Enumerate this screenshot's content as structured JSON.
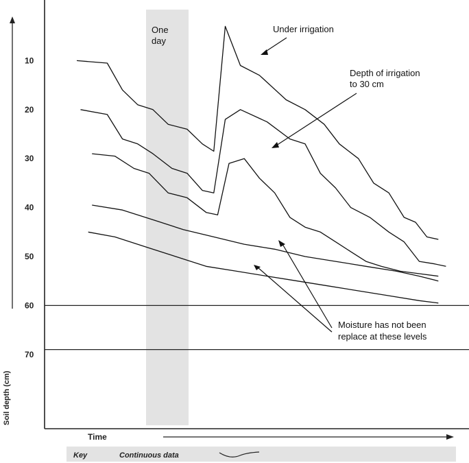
{
  "chart_data": {
    "type": "line",
    "title": "",
    "ylabel": "Soil depth (cm)",
    "xlabel": "Time",
    "y_ticks": [
      "10",
      "20",
      "30",
      "40",
      "50",
      "60",
      "70"
    ],
    "band_label": "One day",
    "x_range": [
      0,
      100
    ],
    "y_range": [
      0,
      80
    ],
    "reference_lines": [
      60,
      69
    ],
    "annotations": {
      "under_irrigation": "Under irrigation",
      "depth_irrigation": [
        "Depth of irrigation",
        "to 30 cm"
      ],
      "moisture": [
        "Moisture has not been",
        "replace at these levels"
      ]
    },
    "key": {
      "key_label": "Key",
      "continuous_label": "Continuous data"
    },
    "series": [
      {
        "values": [
          [
            0,
            10
          ],
          [
            8,
            10.5
          ],
          [
            12,
            16
          ],
          [
            16,
            19
          ],
          [
            20,
            20
          ],
          [
            24,
            23
          ],
          [
            29,
            24
          ],
          [
            33,
            27
          ],
          [
            36,
            28.5
          ],
          [
            39,
            3
          ],
          [
            43,
            11
          ],
          [
            48,
            13
          ],
          [
            55,
            18
          ],
          [
            60,
            20
          ],
          [
            65,
            23
          ],
          [
            69,
            27
          ],
          [
            74,
            30
          ],
          [
            78,
            35
          ],
          [
            82,
            37
          ],
          [
            86,
            42
          ],
          [
            89,
            43
          ],
          [
            92,
            46
          ],
          [
            95,
            46.5
          ]
        ]
      },
      {
        "values": [
          [
            1,
            20
          ],
          [
            8,
            21
          ],
          [
            12,
            26
          ],
          [
            16,
            27
          ],
          [
            20,
            29
          ],
          [
            25,
            32
          ],
          [
            29,
            33
          ],
          [
            33,
            36.5
          ],
          [
            36,
            37
          ],
          [
            39,
            22
          ],
          [
            43,
            20
          ],
          [
            50,
            22.5
          ],
          [
            56,
            26
          ],
          [
            60,
            27
          ],
          [
            64,
            33
          ],
          [
            68,
            36
          ],
          [
            72,
            40
          ],
          [
            77,
            42
          ],
          [
            82,
            45
          ],
          [
            86,
            47
          ],
          [
            90,
            51
          ],
          [
            94,
            51.5
          ],
          [
            97,
            52
          ]
        ]
      },
      {
        "values": [
          [
            4,
            29
          ],
          [
            10,
            29.5
          ],
          [
            15,
            32
          ],
          [
            19,
            33
          ],
          [
            24,
            37
          ],
          [
            29,
            38
          ],
          [
            34,
            41
          ],
          [
            37,
            41.5
          ],
          [
            40,
            31
          ],
          [
            44,
            30
          ],
          [
            48,
            34
          ],
          [
            52,
            37
          ],
          [
            56,
            42
          ],
          [
            60,
            44
          ],
          [
            64,
            45
          ],
          [
            68,
            47
          ],
          [
            72,
            49
          ],
          [
            76,
            51
          ],
          [
            80,
            52
          ],
          [
            85,
            53
          ],
          [
            90,
            53.5
          ],
          [
            95,
            54
          ]
        ]
      },
      {
        "values": [
          [
            4,
            39.5
          ],
          [
            12,
            40.5
          ],
          [
            20,
            42.5
          ],
          [
            28,
            44.5
          ],
          [
            36,
            46
          ],
          [
            44,
            47.5
          ],
          [
            52,
            48.5
          ],
          [
            60,
            50
          ],
          [
            68,
            51
          ],
          [
            76,
            52
          ],
          [
            84,
            53
          ],
          [
            90,
            54
          ],
          [
            95,
            55
          ]
        ]
      },
      {
        "values": [
          [
            3,
            45
          ],
          [
            10,
            46
          ],
          [
            18,
            48
          ],
          [
            26,
            50
          ],
          [
            34,
            52
          ],
          [
            42,
            53
          ],
          [
            50,
            54
          ],
          [
            58,
            55
          ],
          [
            66,
            56
          ],
          [
            74,
            57
          ],
          [
            82,
            58
          ],
          [
            90,
            59
          ],
          [
            95,
            59.5
          ]
        ]
      }
    ]
  }
}
